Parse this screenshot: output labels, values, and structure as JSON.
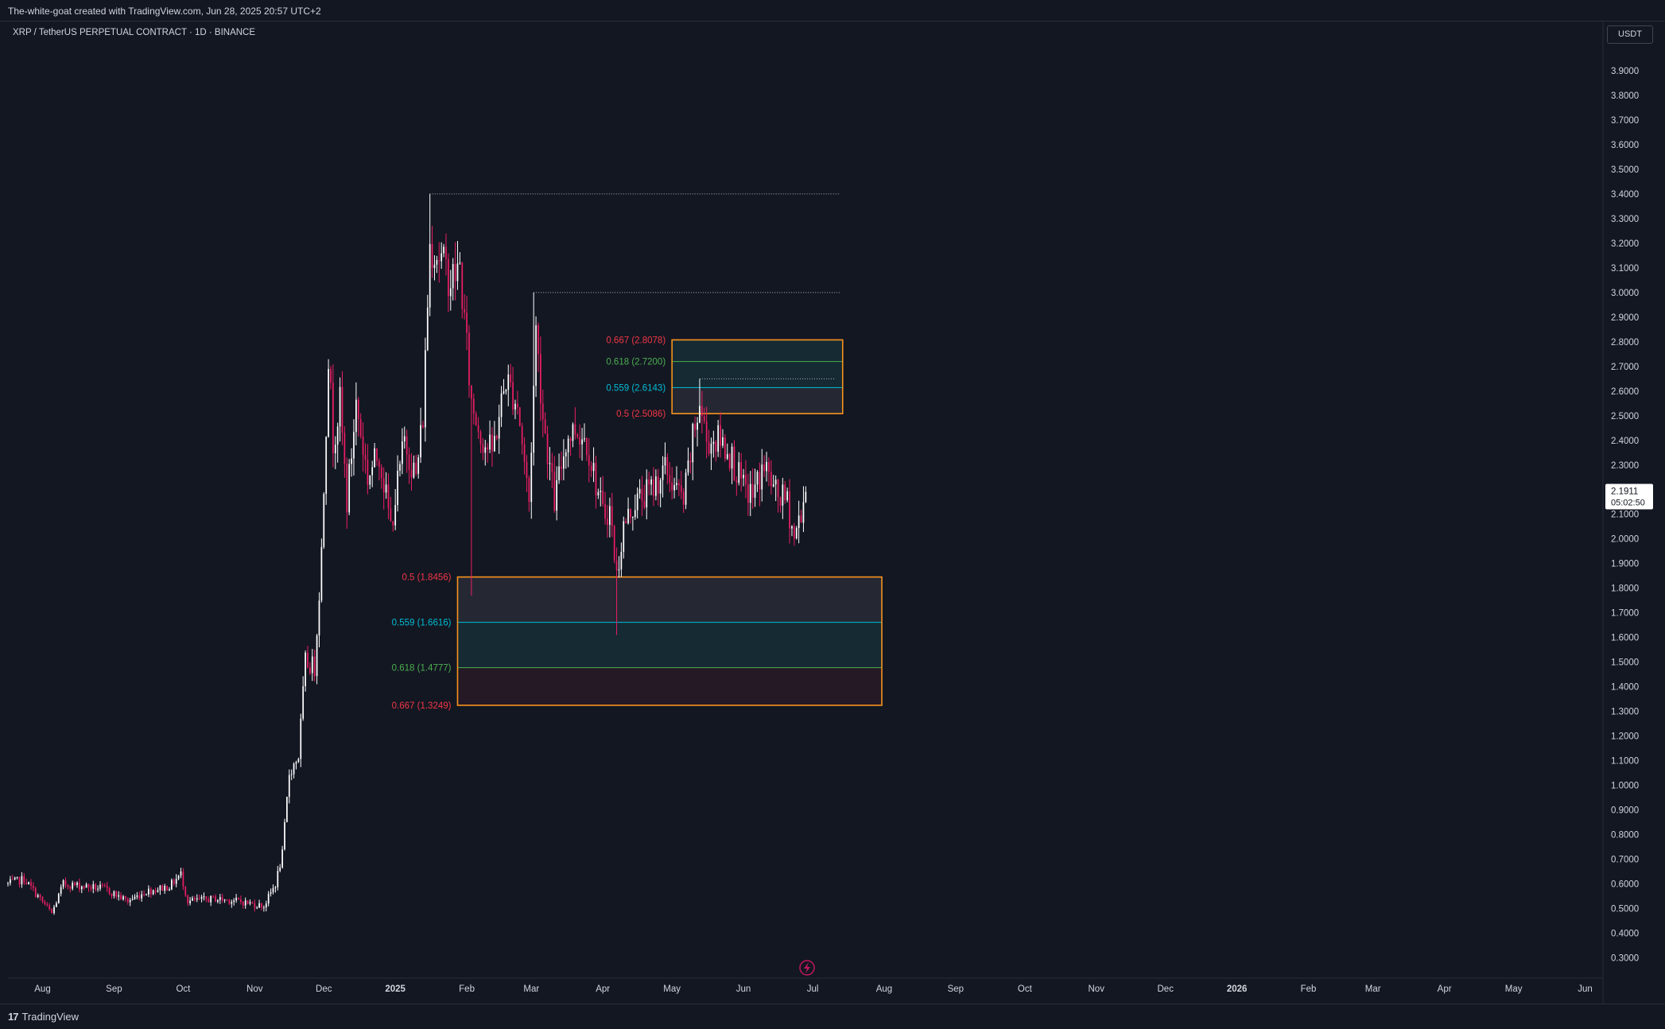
{
  "header": {
    "attribution": "The-white-goat created with TradingView.com, Jun 28, 2025 20:57 UTC+2"
  },
  "symbol": {
    "title": "XRP / TetherUS PERPETUAL CONTRACT · 1D · BINANCE"
  },
  "currency_button": {
    "label": "USDT"
  },
  "price_label": {
    "price": "2.1911",
    "countdown": "05:02:50"
  },
  "footer": {
    "logo_icon": "17",
    "logo_text": "TradingView"
  },
  "colors": {
    "background": "#131722",
    "up": "#ffffff",
    "down": "#e91e63",
    "box_border": "#f7941d",
    "fib_red": "#f23645",
    "fib_green": "#4caf50",
    "fib_blue": "#00bcd4"
  },
  "chart_data": {
    "type": "candlestick",
    "x_axis": {
      "start": "2024-07-17",
      "end": "2026-06-06",
      "tick_labels": [
        {
          "label": "Aug",
          "date": "2024-08-01"
        },
        {
          "label": "Sep",
          "date": "2024-09-01"
        },
        {
          "label": "Oct",
          "date": "2024-10-01"
        },
        {
          "label": "Nov",
          "date": "2024-11-01"
        },
        {
          "label": "Dec",
          "date": "2024-12-01"
        },
        {
          "label": "2025",
          "date": "2025-01-01"
        },
        {
          "label": "Feb",
          "date": "2025-02-01"
        },
        {
          "label": "Mar",
          "date": "2025-03-01"
        },
        {
          "label": "Apr",
          "date": "2025-04-01"
        },
        {
          "label": "May",
          "date": "2025-05-01"
        },
        {
          "label": "Jun",
          "date": "2025-06-01"
        },
        {
          "label": "Jul",
          "date": "2025-07-01"
        },
        {
          "label": "Aug",
          "date": "2025-08-01"
        },
        {
          "label": "Sep",
          "date": "2025-09-01"
        },
        {
          "label": "Oct",
          "date": "2025-10-01"
        },
        {
          "label": "Nov",
          "date": "2025-11-01"
        },
        {
          "label": "Dec",
          "date": "2025-12-01"
        },
        {
          "label": "2026",
          "date": "2026-01-01"
        },
        {
          "label": "Feb",
          "date": "2026-02-01"
        },
        {
          "label": "Mar",
          "date": "2026-03-01"
        },
        {
          "label": "Apr",
          "date": "2026-04-01"
        },
        {
          "label": "May",
          "date": "2026-05-01"
        },
        {
          "label": "Jun",
          "date": "2026-06-01"
        }
      ]
    },
    "y_axis": {
      "min": 0.25,
      "max": 4.0,
      "ticks": [
        "0.3000",
        "0.4000",
        "0.5000",
        "0.6000",
        "0.7000",
        "0.8000",
        "0.9000",
        "1.0000",
        "1.1000",
        "1.2000",
        "1.3000",
        "1.4000",
        "1.5000",
        "1.6000",
        "1.7000",
        "1.8000",
        "1.9000",
        "2.0000",
        "2.1000",
        "2.2000",
        "2.3000",
        "2.4000",
        "2.5000",
        "2.6000",
        "2.7000",
        "2.8000",
        "2.9000",
        "3.0000",
        "3.1000",
        "3.2000",
        "3.3000",
        "3.4000",
        "3.5000",
        "3.6000",
        "3.7000",
        "3.8000",
        "3.9000"
      ]
    },
    "price_keyframes": [
      [
        "2024-07-17",
        0.6
      ],
      [
        "2024-07-24",
        0.62
      ],
      [
        "2024-08-05",
        0.48
      ],
      [
        "2024-08-10",
        0.6
      ],
      [
        "2024-08-20",
        0.59
      ],
      [
        "2024-08-28",
        0.58
      ],
      [
        "2024-09-07",
        0.53
      ],
      [
        "2024-09-15",
        0.57
      ],
      [
        "2024-09-25",
        0.59
      ],
      [
        "2024-09-30",
        0.64
      ],
      [
        "2024-10-03",
        0.53
      ],
      [
        "2024-10-15",
        0.54
      ],
      [
        "2024-10-25",
        0.53
      ],
      [
        "2024-11-05",
        0.51
      ],
      [
        "2024-11-10",
        0.6
      ],
      [
        "2024-11-13",
        0.72
      ],
      [
        "2024-11-16",
        1.05
      ],
      [
        "2024-11-20",
        1.12
      ],
      [
        "2024-11-23",
        1.5
      ],
      [
        "2024-11-27",
        1.48
      ],
      [
        "2024-11-30",
        1.95
      ],
      [
        "2024-12-03",
        2.75
      ],
      [
        "2024-12-05",
        2.4
      ],
      [
        "2024-12-08",
        2.55
      ],
      [
        "2024-12-11",
        2.15
      ],
      [
        "2024-12-15",
        2.55
      ],
      [
        "2024-12-20",
        2.25
      ],
      [
        "2024-12-25",
        2.35
      ],
      [
        "2024-12-30",
        2.05
      ],
      [
        "2025-01-05",
        2.4
      ],
      [
        "2025-01-10",
        2.25
      ],
      [
        "2025-01-13",
        2.5
      ],
      [
        "2025-01-16",
        3.2
      ],
      [
        "2025-01-20",
        3.15
      ],
      [
        "2025-01-25",
        3.05
      ],
      [
        "2025-01-29",
        3.1
      ],
      [
        "2025-02-03",
        2.55
      ],
      [
        "2025-02-08",
        2.4
      ],
      [
        "2025-02-12",
        2.35
      ],
      [
        "2025-02-18",
        2.65
      ],
      [
        "2025-02-23",
        2.55
      ],
      [
        "2025-02-28",
        2.15
      ],
      [
        "2025-03-03",
        2.85
      ],
      [
        "2025-03-06",
        2.5
      ],
      [
        "2025-03-11",
        2.15
      ],
      [
        "2025-03-16",
        2.4
      ],
      [
        "2025-03-20",
        2.45
      ],
      [
        "2025-03-25",
        2.4
      ],
      [
        "2025-04-01",
        2.1
      ],
      [
        "2025-04-04",
        2.12
      ],
      [
        "2025-04-07",
        1.85
      ],
      [
        "2025-04-10",
        2.05
      ],
      [
        "2025-04-15",
        2.15
      ],
      [
        "2025-04-22",
        2.2
      ],
      [
        "2025-04-28",
        2.28
      ],
      [
        "2025-05-06",
        2.15
      ],
      [
        "2025-05-10",
        2.4
      ],
      [
        "2025-05-13",
        2.55
      ],
      [
        "2025-05-16",
        2.4
      ],
      [
        "2025-05-22",
        2.4
      ],
      [
        "2025-05-26",
        2.35
      ],
      [
        "2025-06-01",
        2.2
      ],
      [
        "2025-06-05",
        2.18
      ],
      [
        "2025-06-10",
        2.3
      ],
      [
        "2025-06-15",
        2.18
      ],
      [
        "2025-06-20",
        2.15
      ],
      [
        "2025-06-23",
        2.0
      ],
      [
        "2025-06-28",
        2.19
      ]
    ],
    "horizontal_lines": [
      {
        "price": 3.4,
        "from": "2025-01-16",
        "to": "2025-07-13"
      },
      {
        "price": 3.0,
        "from": "2025-03-02",
        "to": "2025-07-13"
      },
      {
        "price": 2.65,
        "from": "2025-05-13",
        "to": "2025-07-11"
      }
    ],
    "fib_boxes": [
      {
        "from": "2025-05-01",
        "to": "2025-07-14",
        "top": 2.8078,
        "bottom": 2.5086,
        "levels": [
          {
            "label": "0.667 (2.8078)",
            "price": 2.8078,
            "color": "#f23645"
          },
          {
            "label": "0.618 (2.7200)",
            "price": 2.72,
            "color": "#4caf50"
          },
          {
            "label": "0.559 (2.6143)",
            "price": 2.6143,
            "color": "#00bcd4"
          },
          {
            "label": "0.5 (2.5086)",
            "price": 2.5086,
            "color": "#f23645"
          }
        ]
      },
      {
        "from": "2025-01-28",
        "to": "2025-07-31",
        "top": 1.8456,
        "bottom": 1.3249,
        "levels": [
          {
            "label": "0.5 (1.8456)",
            "price": 1.8456,
            "color": "#f23645"
          },
          {
            "label": "0.559 (1.6616)",
            "price": 1.6616,
            "color": "#00bcd4"
          },
          {
            "label": "0.618 (1.4777)",
            "price": 1.4777,
            "color": "#4caf50"
          },
          {
            "label": "0.667 (1.3249)",
            "price": 1.3249,
            "color": "#f23645"
          }
        ]
      }
    ],
    "last_price": 2.1911
  }
}
